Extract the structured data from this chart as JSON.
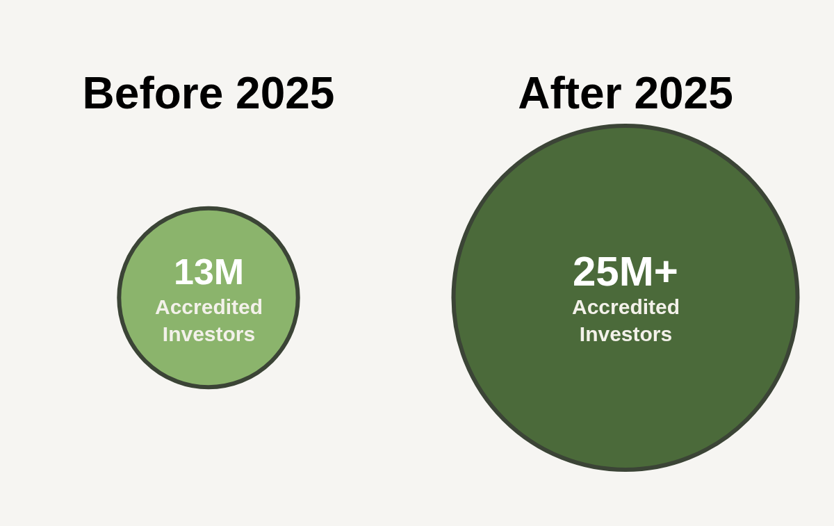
{
  "chart_data": {
    "type": "other",
    "categories": [
      "Before 2025",
      "After 2025"
    ],
    "values": [
      13,
      25
    ],
    "colors": [
      "#8bb46c",
      "#4b6a3a"
    ],
    "value_labels": [
      "13M",
      "25M+"
    ],
    "annotations": [
      "Accredited Investors",
      "Accredited Investors"
    ]
  }
}
